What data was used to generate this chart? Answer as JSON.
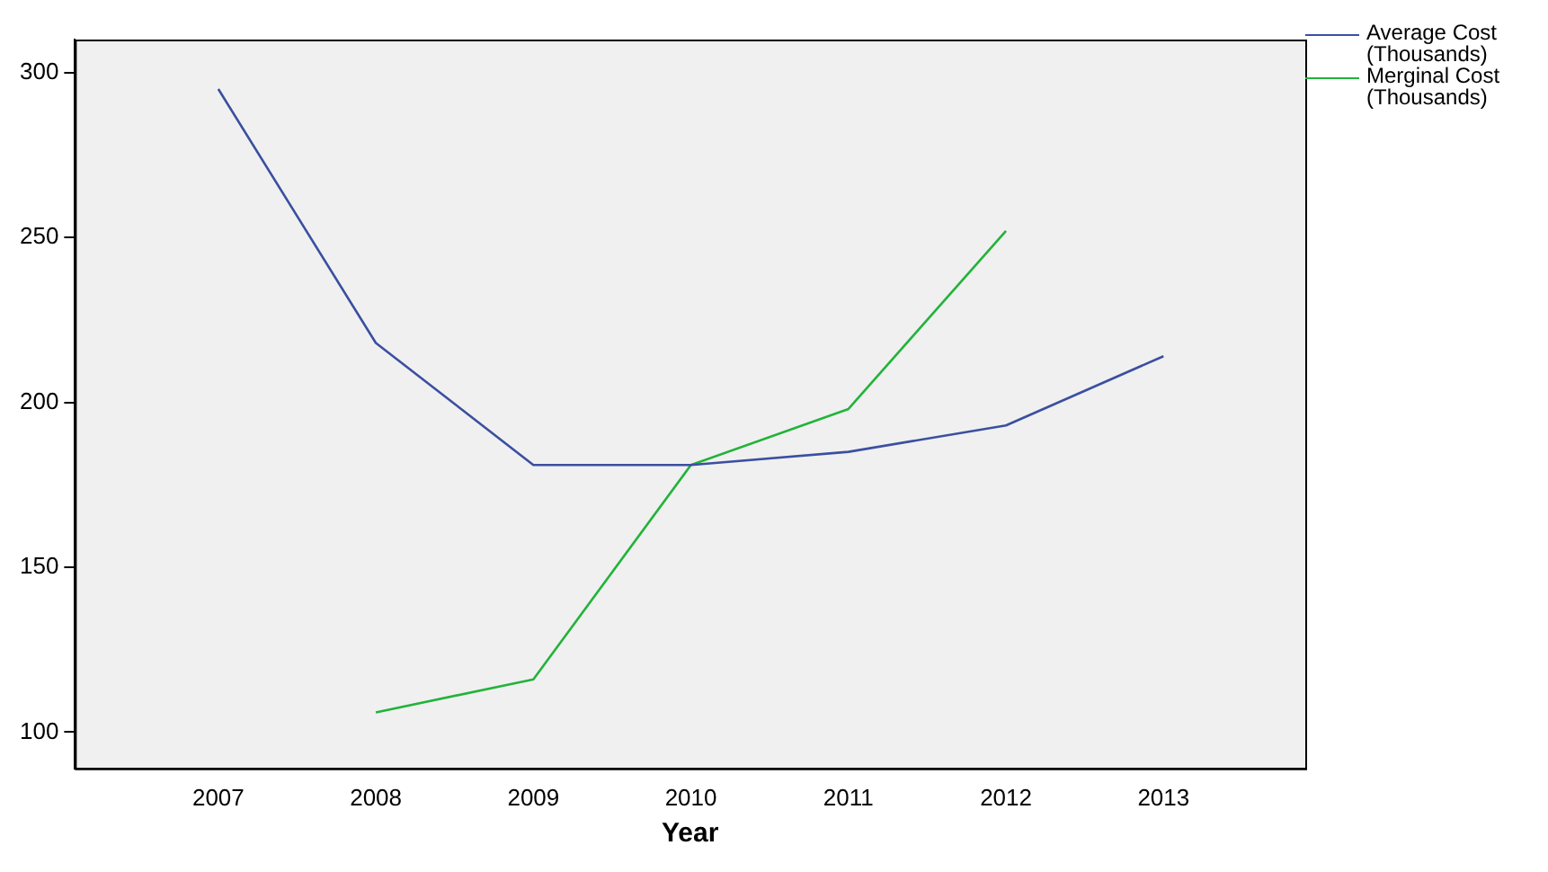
{
  "chart_data": {
    "type": "line",
    "xlabel": "Year",
    "x": [
      2007,
      2008,
      2009,
      2010,
      2011,
      2012,
      2013
    ],
    "xlim": [
      2006.09,
      2013.9
    ],
    "xticks": [
      2007,
      2008,
      2009,
      2010,
      2011,
      2012,
      2013
    ],
    "ylim": [
      89,
      310
    ],
    "yticks": [
      100,
      150,
      200,
      250,
      300
    ],
    "grid": false,
    "legend": "top right",
    "marker": "none",
    "line_style": "solid",
    "series": [
      {
        "name": "Average Cost (Thousands)",
        "color": "#3b4fa0",
        "values": [
          295,
          218,
          181,
          181,
          185,
          193,
          214
        ]
      },
      {
        "name": "Merginal Cost (Thousands)",
        "color": "#22b33a",
        "values": [
          null,
          106,
          116,
          181,
          198,
          252,
          null
        ]
      }
    ]
  }
}
